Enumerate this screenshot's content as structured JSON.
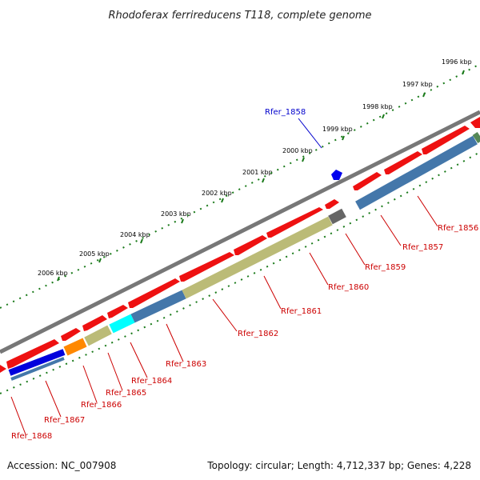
{
  "title": "Rhodoferax ferrireducens T118, complete genome",
  "footer": {
    "accession": "Accession: NC_007908",
    "summary": "Topology: circular; Length: 4,712,337 bp; Genes: 4,228"
  },
  "scale_labels": [
    "1996 kbp",
    "1997 kbp",
    "1998 kbp",
    "1999 kbp",
    "2000 kbp",
    "2001 kbp",
    "2002 kbp",
    "2003 kbp",
    "2004 kbp",
    "2005 kbp",
    "2006 kbp"
  ],
  "colors": {
    "backbone": "#777777",
    "cds": "#ee1111",
    "tick": "#1a7a1a",
    "highlight_label": "#0000cc",
    "label": "#cc0000"
  },
  "highlight_gene": {
    "label": "Rfer_1858",
    "color": "#0000ee"
  },
  "gene_labels": [
    "Rfer_1856",
    "Rfer_1857",
    "Rfer_1859",
    "Rfer_1860",
    "Rfer_1861",
    "Rfer_1862",
    "Rfer_1863",
    "Rfer_1864",
    "Rfer_1865",
    "Rfer_1866",
    "Rfer_1867",
    "Rfer_1868"
  ],
  "cog_segments": [
    {
      "color": "#0000dd"
    },
    {
      "color": "#ff8800"
    },
    {
      "color": "#bbbb77"
    },
    {
      "color": "#00ffff"
    },
    {
      "color": "#4477aa"
    },
    {
      "color": "#bbbb77"
    },
    {
      "color": "#666666"
    },
    {
      "color": "#4477aa"
    },
    {
      "color": "#558855"
    }
  ]
}
